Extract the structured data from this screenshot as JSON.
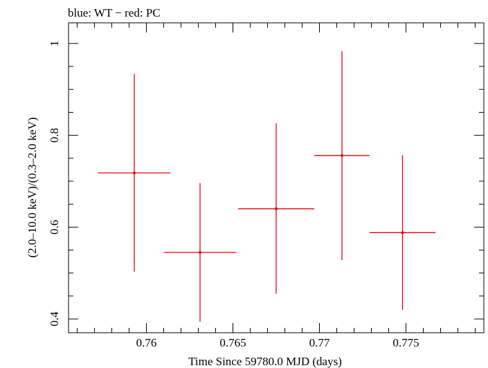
{
  "header": {
    "title": "blue: WT − red: PC"
  },
  "chart_data": {
    "type": "scatter",
    "title": "blue: WT − red: PC",
    "xlabel": "Time Since 59780.0 MJD (days)",
    "ylabel": "(2.0–10.0 keV)/(0.3–2.0 keV)",
    "xlim": [
      0.7555,
      0.7795
    ],
    "ylim": [
      0.37,
      1.045
    ],
    "x_ticks": [
      0.76,
      0.765,
      0.77,
      0.775
    ],
    "x_tick_labels": [
      "0.76",
      "0.765",
      "0.77",
      "0.775"
    ],
    "y_ticks": [
      0.4,
      0.6,
      0.8,
      1.0
    ],
    "y_tick_labels": [
      "0.4",
      "0.6",
      "0.8",
      "1"
    ],
    "grid": false,
    "legend": "none",
    "series": [
      {
        "color": "#e8000b",
        "points": [
          {
            "x": 0.7593,
            "xerr": 0.0021,
            "y": 0.718,
            "ylow": 0.503,
            "yhigh": 0.934
          },
          {
            "x": 0.7631,
            "xerr": 0.0021,
            "y": 0.545,
            "ylow": 0.394,
            "yhigh": 0.696
          },
          {
            "x": 0.7675,
            "xerr": 0.0022,
            "y": 0.64,
            "ylow": 0.455,
            "yhigh": 0.826
          },
          {
            "x": 0.7713,
            "xerr": 0.0016,
            "y": 0.756,
            "ylow": 0.528,
            "yhigh": 0.983
          },
          {
            "x": 0.7748,
            "xerr": 0.0019,
            "y": 0.588,
            "ylow": 0.42,
            "yhigh": 0.757
          }
        ]
      }
    ]
  }
}
